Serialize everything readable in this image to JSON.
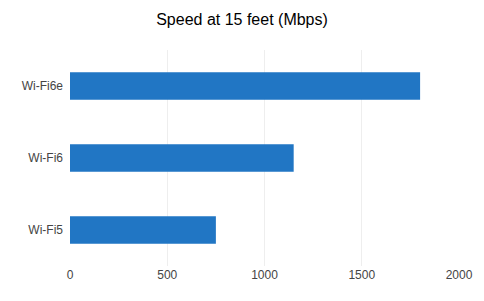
{
  "chart_data": {
    "type": "bar",
    "title": "Speed at 15 feet (Mbps)",
    "categories": [
      "Wi-Fi5",
      "Wi-Fi6",
      "Wi-Fi6e"
    ],
    "values": [
      750,
      1150,
      1800
    ],
    "color": "#2176C4",
    "orientation": "horizontal",
    "xlim": [
      0,
      2000
    ],
    "xticks": [
      0,
      500,
      1000,
      1500,
      2000
    ],
    "grid": true
  }
}
